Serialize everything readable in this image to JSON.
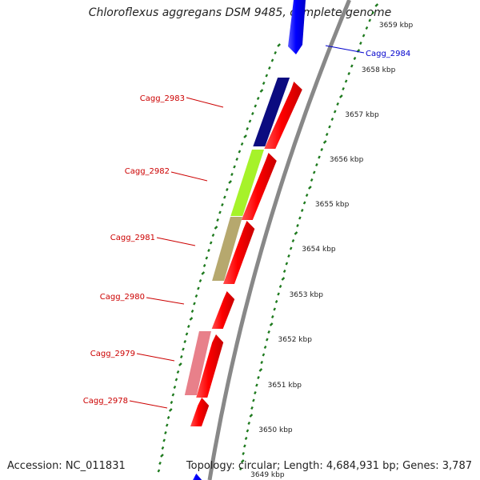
{
  "title": "Chloroflexus aggregans DSM 9485, complete genome",
  "footer": {
    "accession": "Accession: NC_011831",
    "stats": "Topology: circular; Length: 4,684,931 bp; Genes: 3,787"
  },
  "colors": {
    "cds": "#ff0000",
    "backbone": "#888888",
    "tick": "#1e7a1e",
    "label_red": "#cc0000",
    "label_blue": "#0000cc",
    "gene_2984": "#0000ff"
  },
  "scale_labels": [
    "3659 kbp",
    "3658 kbp",
    "3657 kbp",
    "3656 kbp",
    "3655 kbp",
    "3654 kbp",
    "3653 kbp",
    "3652 kbp",
    "3651 kbp",
    "3650 kbp",
    "3649 kbp"
  ],
  "genes": [
    {
      "name": "Cagg_2984",
      "label_color": "#0000cc"
    },
    {
      "name": "Cagg_2983",
      "label_color": "#cc0000"
    },
    {
      "name": "Cagg_2982",
      "label_color": "#cc0000"
    },
    {
      "name": "Cagg_2981",
      "label_color": "#cc0000"
    },
    {
      "name": "Cagg_2980",
      "label_color": "#cc0000"
    },
    {
      "name": "Cagg_2979",
      "label_color": "#cc0000"
    },
    {
      "name": "Cagg_2978",
      "label_color": "#cc0000"
    }
  ],
  "feature_colors": {
    "Cagg_2983": "#0b0b80",
    "Cagg_2982": "#a6f22a",
    "Cagg_2981": "#b6a86e",
    "Cagg_2979": "#e8808a"
  }
}
